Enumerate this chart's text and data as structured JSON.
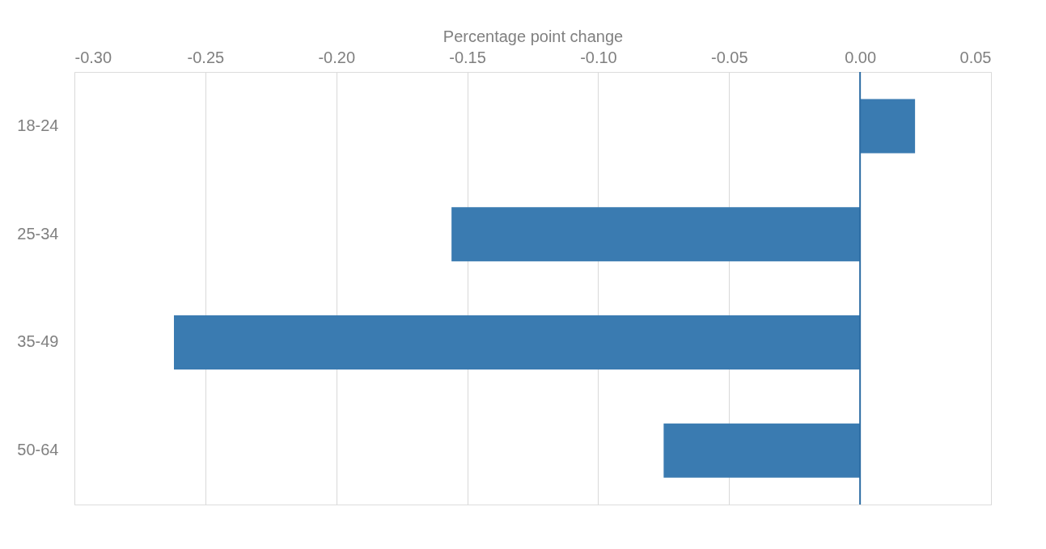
{
  "chart_data": {
    "type": "bar",
    "orientation": "horizontal",
    "xlabel": "Percentage point change",
    "categories": [
      "18-24",
      "25-34",
      "35-49",
      "50-64"
    ],
    "values": [
      0.021,
      -0.156,
      -0.262,
      -0.075
    ],
    "color": "#3a7bb1",
    "xlim": [
      -0.3,
      0.05
    ],
    "xticks": [
      {
        "value": -0.3,
        "label": "-0.30"
      },
      {
        "value": -0.25,
        "label": "-0.25"
      },
      {
        "value": -0.2,
        "label": "-0.20"
      },
      {
        "value": -0.15,
        "label": "-0.15"
      },
      {
        "value": -0.1,
        "label": "-0.10"
      },
      {
        "value": -0.05,
        "label": "-0.05"
      },
      {
        "value": 0,
        "label": "0.00"
      },
      {
        "value": 0.05,
        "label": "0.05"
      }
    ],
    "ref_lines": [
      {
        "axis": "x",
        "value": 0,
        "color": "#2e6da4"
      }
    ],
    "grid": "x"
  }
}
